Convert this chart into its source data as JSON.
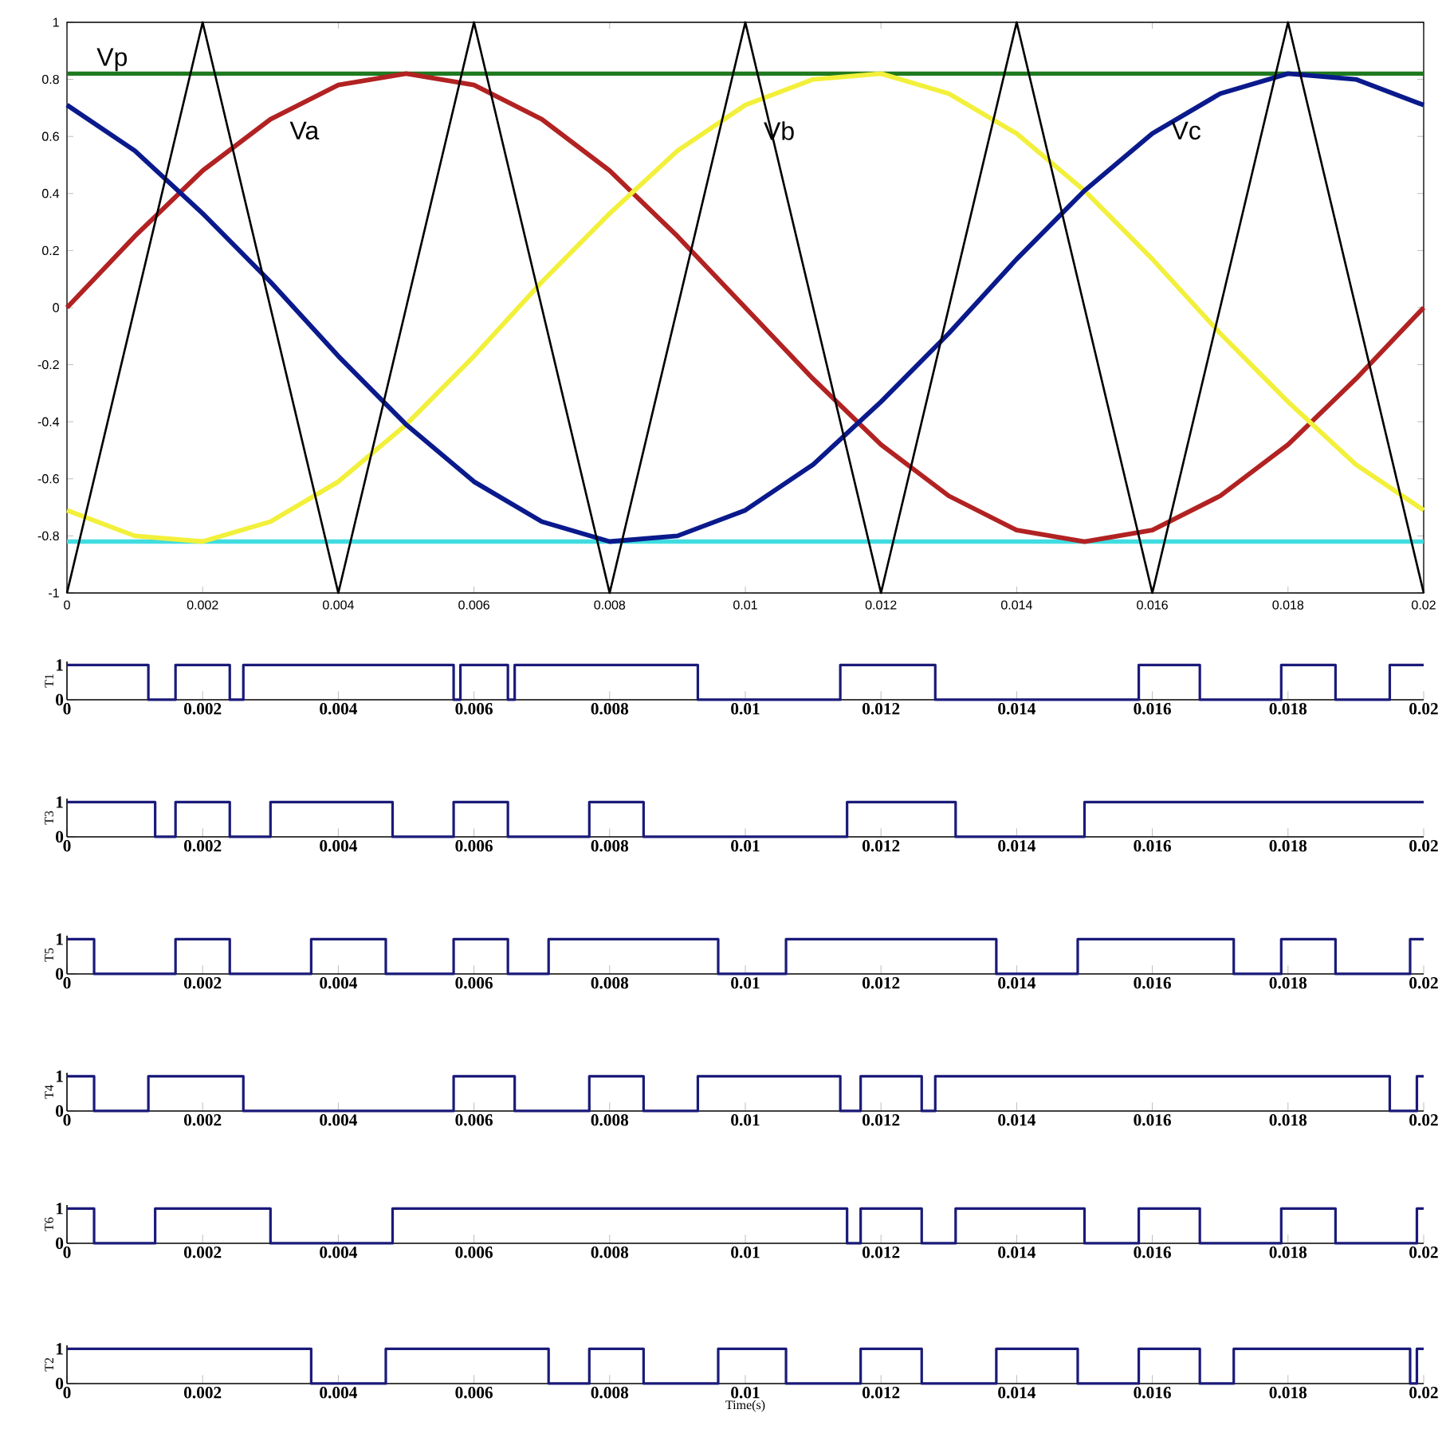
{
  "chart_data": [
    {
      "type": "line",
      "xlim": [
        0,
        0.02
      ],
      "ylim": [
        -1,
        1
      ],
      "xticks": [
        0,
        0.002,
        0.004,
        0.006,
        0.008,
        0.01,
        0.012,
        0.014,
        0.016,
        0.018,
        0.02
      ],
      "yticks": [
        -1,
        -0.8,
        -0.6,
        -0.4,
        -0.2,
        0,
        0.2,
        0.4,
        0.6,
        0.8,
        1
      ],
      "x": [
        0,
        0.001,
        0.002,
        0.003,
        0.004,
        0.005,
        0.006,
        0.007,
        0.008,
        0.009,
        0.01,
        0.011,
        0.012,
        0.013,
        0.014,
        0.015,
        0.016,
        0.017,
        0.018,
        0.019,
        0.02
      ],
      "series": [
        {
          "name": "Va",
          "color": "#b22222",
          "values": [
            0,
            0.25,
            0.48,
            0.66,
            0.78,
            0.82,
            0.78,
            0.66,
            0.48,
            0.25,
            0,
            -0.25,
            -0.48,
            -0.66,
            -0.78,
            -0.82,
            -0.78,
            -0.66,
            -0.48,
            -0.25,
            0
          ]
        },
        {
          "name": "Vb",
          "color": "#f2f03a",
          "values": [
            -0.71,
            -0.8,
            -0.82,
            -0.75,
            -0.61,
            -0.41,
            -0.17,
            0.09,
            0.33,
            0.55,
            0.71,
            0.8,
            0.82,
            0.75,
            0.61,
            0.41,
            0.17,
            -0.09,
            -0.33,
            -0.55,
            -0.71
          ]
        },
        {
          "name": "Vc",
          "color": "#0a1a8c",
          "values": [
            0.71,
            0.55,
            0.33,
            0.09,
            -0.17,
            -0.41,
            -0.61,
            -0.75,
            -0.82,
            -0.8,
            -0.71,
            -0.55,
            -0.33,
            -0.09,
            0.17,
            0.41,
            0.61,
            0.75,
            0.82,
            0.8,
            0.71
          ]
        },
        {
          "color": "#000000",
          "x": [
            0,
            0.002,
            0.004,
            0.006,
            0.008,
            0.01,
            0.012,
            0.014,
            0.016,
            0.018,
            0.02
          ],
          "values": [
            -1,
            1,
            -1,
            1,
            -1,
            1,
            -1,
            1,
            -1,
            1,
            -1
          ]
        }
      ],
      "ref_lines": [
        {
          "axis": "y",
          "value": 0.82,
          "label": "Vp",
          "color": "#1e7a1e"
        },
        {
          "axis": "y",
          "value": -0.82,
          "color": "#40dce0"
        }
      ]
    },
    {
      "type": "step",
      "ylabel": "T1",
      "xlim": [
        0,
        0.02
      ],
      "ylim": [
        0,
        1.1
      ],
      "yticks": [
        0,
        1
      ],
      "color": "#1a1a7a",
      "xticks": [
        0,
        0.002,
        0.004,
        0.006,
        0.008,
        0.01,
        0.012,
        0.014,
        0.016,
        0.018,
        0.02
      ],
      "x": [
        0,
        0.0012,
        0.0016,
        0.0024,
        0.0026,
        0.0057,
        0.0058,
        0.0065,
        0.0066,
        0.0093,
        0.0114,
        0.0128,
        0.0158,
        0.0167,
        0.0179,
        0.0187,
        0.0195,
        0.02
      ],
      "values": [
        1,
        0,
        1,
        0,
        1,
        0,
        1,
        0,
        1,
        0,
        1,
        0,
        1,
        0,
        1,
        0,
        1,
        1
      ]
    },
    {
      "type": "step",
      "ylabel": "T3",
      "xlim": [
        0,
        0.02
      ],
      "ylim": [
        0,
        1.1
      ],
      "yticks": [
        0,
        1
      ],
      "color": "#1a1a7a",
      "xticks": [
        0,
        0.002,
        0.004,
        0.006,
        0.008,
        0.01,
        0.012,
        0.014,
        0.016,
        0.018,
        0.02
      ],
      "x": [
        0,
        0.0013,
        0.0016,
        0.0024,
        0.003,
        0.0048,
        0.0057,
        0.0065,
        0.0077,
        0.0085,
        0.0115,
        0.0131,
        0.015,
        0.02
      ],
      "values": [
        1,
        0,
        1,
        0,
        1,
        0,
        1,
        0,
        1,
        0,
        1,
        0,
        1,
        1
      ]
    },
    {
      "type": "step",
      "ylabel": "T5",
      "xlim": [
        0,
        0.02
      ],
      "ylim": [
        0,
        1.1
      ],
      "yticks": [
        0,
        1
      ],
      "color": "#1a1a7a",
      "xticks": [
        0,
        0.002,
        0.004,
        0.006,
        0.008,
        0.01,
        0.012,
        0.014,
        0.016,
        0.018,
        0.02
      ],
      "x": [
        0,
        0.0004,
        0.0016,
        0.0024,
        0.0036,
        0.0047,
        0.0057,
        0.0065,
        0.0071,
        0.0096,
        0.0106,
        0.0137,
        0.0149,
        0.0172,
        0.0179,
        0.0187,
        0.0198,
        0.02
      ],
      "values": [
        1,
        0,
        1,
        0,
        1,
        0,
        1,
        0,
        1,
        0,
        1,
        0,
        1,
        0,
        1,
        0,
        1,
        1
      ]
    },
    {
      "type": "step",
      "ylabel": "T4",
      "xlim": [
        0,
        0.02
      ],
      "ylim": [
        0,
        1.1
      ],
      "yticks": [
        0,
        1
      ],
      "color": "#1a1a7a",
      "xticks": [
        0,
        0.002,
        0.004,
        0.006,
        0.008,
        0.01,
        0.012,
        0.014,
        0.016,
        0.018,
        0.02
      ],
      "x": [
        0,
        0.0004,
        0.0012,
        0.0026,
        0.0057,
        0.0066,
        0.0077,
        0.0085,
        0.0093,
        0.0114,
        0.0117,
        0.0126,
        0.0128,
        0.0195,
        0.0199,
        0.02
      ],
      "values": [
        1,
        0,
        1,
        0,
        1,
        0,
        1,
        0,
        1,
        0,
        1,
        0,
        1,
        0,
        1,
        1
      ]
    },
    {
      "type": "step",
      "ylabel": "T6",
      "xlim": [
        0,
        0.02
      ],
      "ylim": [
        0,
        1.1
      ],
      "yticks": [
        0,
        1
      ],
      "color": "#1a1a7a",
      "xticks": [
        0,
        0.002,
        0.004,
        0.006,
        0.008,
        0.01,
        0.012,
        0.014,
        0.016,
        0.018,
        0.02
      ],
      "x": [
        0,
        0.0004,
        0.0013,
        0.003,
        0.0048,
        0.0115,
        0.0117,
        0.0126,
        0.0131,
        0.015,
        0.0158,
        0.0167,
        0.0179,
        0.0187,
        0.0199,
        0.02
      ],
      "values": [
        1,
        0,
        1,
        0,
        1,
        0,
        1,
        0,
        1,
        0,
        1,
        0,
        1,
        0,
        1,
        1
      ]
    },
    {
      "type": "step",
      "ylabel": "T2",
      "xlabel": "Time(s)",
      "xlim": [
        0,
        0.02
      ],
      "ylim": [
        0,
        1.1
      ],
      "yticks": [
        0,
        1
      ],
      "color": "#1a1a7a",
      "xticks": [
        0,
        0.002,
        0.004,
        0.006,
        0.008,
        0.01,
        0.012,
        0.014,
        0.016,
        0.018,
        0.02
      ],
      "x": [
        0,
        0.0036,
        0.0047,
        0.0071,
        0.0077,
        0.0085,
        0.0096,
        0.0106,
        0.0117,
        0.0126,
        0.0137,
        0.0149,
        0.0158,
        0.0167,
        0.0172,
        0.0198,
        0.0199,
        0.02
      ],
      "values": [
        1,
        0,
        1,
        0,
        1,
        0,
        1,
        0,
        1,
        0,
        1,
        0,
        1,
        0,
        1,
        0,
        1,
        1
      ]
    }
  ]
}
